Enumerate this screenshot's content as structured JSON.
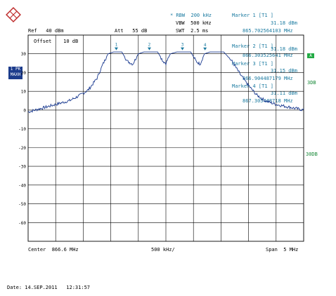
{
  "header": {
    "rbw": "* RBW  200 kHz",
    "vbw": "VBW  500 kHz",
    "swt": "SWT  2.5 ms",
    "ref": "Ref   40 dBm",
    "att": "Att   55 dB",
    "offset": "Offset    10 dB",
    "axis_unit": "dBm"
  },
  "markers": [
    {
      "title": "Marker 1 [T1 ]",
      "level": "31.18 dBm",
      "freq": "865.702564103 MHz",
      "label": "1"
    },
    {
      "title": "Marker 2 [T1 ]",
      "level": "31.18 dBm",
      "freq": "866.303525641 MHz",
      "label": "2"
    },
    {
      "title": "Marker 3 [T1 ]",
      "level": "31.15 dBm",
      "freq": "866.904487179 MHz",
      "label": "3"
    },
    {
      "title": "Marker 4 [T1 ]",
      "level": "31.11 dBm",
      "freq": "867.305448718 MHz",
      "label": "4"
    }
  ],
  "side": {
    "softkey": "A",
    "lbox_line1": "1 PK",
    "lbox_line2": "MAXH",
    "note_3db": "3DB",
    "note_30db": "30DB"
  },
  "y_ticks": [
    "30",
    "20",
    "10",
    "0",
    "-10",
    "-20",
    "-30",
    "-40",
    "-50",
    "-60"
  ],
  "footer": {
    "center": "Center  866.6 MHz",
    "div": "500 kHz/",
    "span": "Span  5 MHz",
    "date": "Date: 14.SEP.2011   12:31:57"
  },
  "chart_data": {
    "type": "line",
    "xlim": [
      864.1,
      869.1
    ],
    "ylim": [
      -70,
      40
    ],
    "x_unit": "MHz",
    "y_unit": "dBm",
    "trace": [
      [
        864.1,
        -1
      ],
      [
        864.35,
        1
      ],
      [
        864.6,
        3
      ],
      [
        864.85,
        5
      ],
      [
        865.05,
        8
      ],
      [
        865.2,
        11
      ],
      [
        865.35,
        17
      ],
      [
        865.45,
        24
      ],
      [
        865.55,
        30
      ],
      [
        865.65,
        31
      ],
      [
        865.8,
        31
      ],
      [
        865.9,
        26
      ],
      [
        866.0,
        24.5
      ],
      [
        866.1,
        30
      ],
      [
        866.2,
        31
      ],
      [
        866.45,
        31
      ],
      [
        866.55,
        26
      ],
      [
        866.6,
        25
      ],
      [
        866.68,
        30
      ],
      [
        866.8,
        31
      ],
      [
        867.05,
        31
      ],
      [
        867.15,
        26
      ],
      [
        867.22,
        24.5
      ],
      [
        867.3,
        30
      ],
      [
        867.4,
        31
      ],
      [
        867.65,
        31
      ],
      [
        867.8,
        26
      ],
      [
        867.95,
        19
      ],
      [
        868.1,
        13
      ],
      [
        868.25,
        8
      ],
      [
        868.4,
        5
      ],
      [
        868.6,
        3
      ],
      [
        868.85,
        1.5
      ],
      [
        869.1,
        0
      ]
    ],
    "markers": [
      {
        "label": "1",
        "x": 865.7,
        "y": 31.18
      },
      {
        "label": "2",
        "x": 866.3,
        "y": 31.18
      },
      {
        "label": "3",
        "x": 866.9,
        "y": 31.15
      },
      {
        "label": "4",
        "x": 867.31,
        "y": 31.11
      }
    ]
  }
}
